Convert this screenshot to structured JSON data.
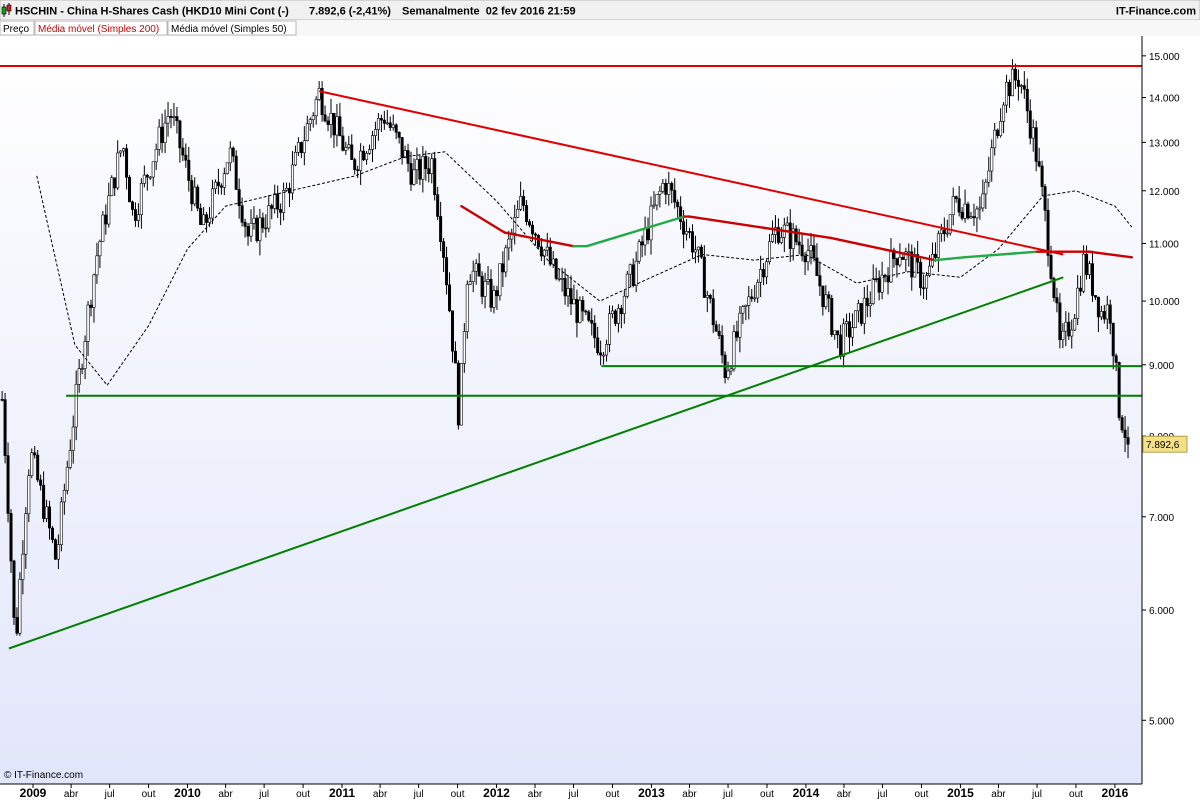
{
  "header": {
    "symbol_line": "HSCHIN - China H-Shares Cash (HKD10 Mini Cont (-)",
    "quote": "7.892,6 (-2,41%)",
    "period": "Semanalmente  02 fev 2016 21:59",
    "brand": "IT-Finance.com"
  },
  "legend": {
    "items": [
      {
        "label": "Preço",
        "color": "#000000"
      },
      {
        "label": "Média móvel (Simples 200)",
        "color": "#cc0000"
      },
      {
        "label": "Média móvel (Simples 50)",
        "color": "#000000"
      }
    ]
  },
  "footer": {
    "copyright": "© IT-Finance.com"
  },
  "colors": {
    "bg_top": "#ffffff",
    "bg_bottom": "#e2e6fa",
    "resistance": "#e00000",
    "support": "#008000",
    "ma200_up": "#22aa44",
    "ma200_down": "#cc0000",
    "ma50": "#000000",
    "candle_up": "#ffffff",
    "candle_down": "#000000",
    "price_label": "#f5e08a"
  },
  "chart_data": {
    "type": "candlestick",
    "y_scale": "log",
    "ylim": [
      4500,
      15500
    ],
    "y_ticks": [
      5000,
      6000,
      7000,
      8000,
      9000,
      10000,
      11000,
      12000,
      13000,
      14000,
      15000
    ],
    "y_tick_labels": [
      "5.000",
      "6.000",
      "7.000",
      "8.000",
      "9.000",
      "10.000",
      "11.000",
      "12.000",
      "13.000",
      "14.000",
      "15.000"
    ],
    "last_price": 7892.6,
    "last_price_label": "7.892,6",
    "x_range": [
      "2008-10-15",
      "2016-03-05"
    ],
    "x_ticks": [
      {
        "date": "2009-01-01",
        "label": "2009",
        "bold": true
      },
      {
        "date": "2009-04-01",
        "label": "abr"
      },
      {
        "date": "2009-07-01",
        "label": "jul"
      },
      {
        "date": "2009-10-01",
        "label": "out"
      },
      {
        "date": "2010-01-01",
        "label": "2010",
        "bold": true
      },
      {
        "date": "2010-04-01",
        "label": "abr"
      },
      {
        "date": "2010-07-01",
        "label": "jul"
      },
      {
        "date": "2010-10-01",
        "label": "out"
      },
      {
        "date": "2011-01-01",
        "label": "2011",
        "bold": true
      },
      {
        "date": "2011-04-01",
        "label": "abr"
      },
      {
        "date": "2011-07-01",
        "label": "jul"
      },
      {
        "date": "2011-10-01",
        "label": "out"
      },
      {
        "date": "2012-01-01",
        "label": "2012",
        "bold": true
      },
      {
        "date": "2012-04-01",
        "label": "abr"
      },
      {
        "date": "2012-07-01",
        "label": "jul"
      },
      {
        "date": "2012-10-01",
        "label": "out"
      },
      {
        "date": "2013-01-01",
        "label": "2013",
        "bold": true
      },
      {
        "date": "2013-04-01",
        "label": "abr"
      },
      {
        "date": "2013-07-01",
        "label": "jul"
      },
      {
        "date": "2013-10-01",
        "label": "out"
      },
      {
        "date": "2014-01-01",
        "label": "2014",
        "bold": true
      },
      {
        "date": "2014-04-01",
        "label": "abr"
      },
      {
        "date": "2014-07-01",
        "label": "jul"
      },
      {
        "date": "2014-10-01",
        "label": "out"
      },
      {
        "date": "2015-01-01",
        "label": "2015",
        "bold": true
      },
      {
        "date": "2015-04-01",
        "label": "abr"
      },
      {
        "date": "2015-07-01",
        "label": "jul"
      },
      {
        "date": "2015-10-01",
        "label": "out"
      },
      {
        "date": "2016-01-01",
        "label": "2016",
        "bold": true
      }
    ],
    "price_path": [
      {
        "date": "2008-10-20",
        "value": 8500
      },
      {
        "date": "2008-11-20",
        "value": 5600
      },
      {
        "date": "2008-12-25",
        "value": 7800
      },
      {
        "date": "2009-02-25",
        "value": 6500
      },
      {
        "date": "2009-04-15",
        "value": 8600
      },
      {
        "date": "2009-06-01",
        "value": 10800
      },
      {
        "date": "2009-08-01",
        "value": 13000
      },
      {
        "date": "2009-08-25",
        "value": 11500
      },
      {
        "date": "2009-11-20",
        "value": 13700
      },
      {
        "date": "2010-02-05",
        "value": 11200
      },
      {
        "date": "2010-04-10",
        "value": 12800
      },
      {
        "date": "2010-05-25",
        "value": 11100
      },
      {
        "date": "2010-08-20",
        "value": 11900
      },
      {
        "date": "2010-11-08",
        "value": 14100
      },
      {
        "date": "2011-01-25",
        "value": 12500
      },
      {
        "date": "2011-04-10",
        "value": 13600
      },
      {
        "date": "2011-06-20",
        "value": 12300
      },
      {
        "date": "2011-08-01",
        "value": 12600
      },
      {
        "date": "2011-09-01",
        "value": 10700
      },
      {
        "date": "2011-10-05",
        "value": 8200
      },
      {
        "date": "2011-10-25",
        "value": 10600
      },
      {
        "date": "2011-12-25",
        "value": 10000
      },
      {
        "date": "2012-03-01",
        "value": 11800
      },
      {
        "date": "2012-05-20",
        "value": 10400
      },
      {
        "date": "2012-08-10",
        "value": 9500
      },
      {
        "date": "2012-09-05",
        "value": 9300
      },
      {
        "date": "2012-11-20",
        "value": 10500
      },
      {
        "date": "2013-02-01",
        "value": 12200
      },
      {
        "date": "2013-04-15",
        "value": 10900
      },
      {
        "date": "2013-06-25",
        "value": 8900
      },
      {
        "date": "2013-08-20",
        "value": 10000
      },
      {
        "date": "2013-10-25",
        "value": 11300
      },
      {
        "date": "2014-01-05",
        "value": 10900
      },
      {
        "date": "2014-03-20",
        "value": 9300
      },
      {
        "date": "2014-05-01",
        "value": 9700
      },
      {
        "date": "2014-08-10",
        "value": 10900
      },
      {
        "date": "2014-10-10",
        "value": 10300
      },
      {
        "date": "2014-12-20",
        "value": 11800
      },
      {
        "date": "2015-02-20",
        "value": 11600
      },
      {
        "date": "2015-04-15",
        "value": 14200
      },
      {
        "date": "2015-05-20",
        "value": 14500
      },
      {
        "date": "2015-06-25",
        "value": 13000
      },
      {
        "date": "2015-08-10",
        "value": 10200
      },
      {
        "date": "2015-08-25",
        "value": 9200
      },
      {
        "date": "2015-09-25",
        "value": 9800
      },
      {
        "date": "2015-10-20",
        "value": 10700
      },
      {
        "date": "2015-12-01",
        "value": 9800
      },
      {
        "date": "2015-12-20",
        "value": 9900
      },
      {
        "date": "2016-01-10",
        "value": 8400
      },
      {
        "date": "2016-02-02",
        "value": 7892.6
      }
    ],
    "ma50_path": [
      {
        "date": "2009-01-10",
        "value": 12300
      },
      {
        "date": "2009-04-10",
        "value": 9300
      },
      {
        "date": "2009-06-25",
        "value": 8700
      },
      {
        "date": "2009-10-01",
        "value": 9600
      },
      {
        "date": "2010-01-01",
        "value": 10900
      },
      {
        "date": "2010-04-01",
        "value": 11700
      },
      {
        "date": "2010-09-01",
        "value": 12000
      },
      {
        "date": "2011-02-01",
        "value": 12300
      },
      {
        "date": "2011-06-01",
        "value": 12700
      },
      {
        "date": "2011-09-01",
        "value": 12800
      },
      {
        "date": "2012-01-01",
        "value": 11800
      },
      {
        "date": "2012-05-01",
        "value": 10700
      },
      {
        "date": "2012-09-01",
        "value": 10000
      },
      {
        "date": "2013-01-01",
        "value": 10400
      },
      {
        "date": "2013-05-01",
        "value": 10800
      },
      {
        "date": "2013-09-01",
        "value": 10700
      },
      {
        "date": "2014-01-01",
        "value": 10800
      },
      {
        "date": "2014-05-01",
        "value": 10300
      },
      {
        "date": "2014-09-01",
        "value": 10500
      },
      {
        "date": "2015-01-01",
        "value": 10400
      },
      {
        "date": "2015-04-01",
        "value": 10900
      },
      {
        "date": "2015-07-15",
        "value": 11900
      },
      {
        "date": "2015-10-01",
        "value": 12000
      },
      {
        "date": "2016-01-01",
        "value": 11700
      },
      {
        "date": "2016-02-10",
        "value": 11300
      }
    ],
    "ma200_path": [
      {
        "date": "2011-10-10",
        "value": 11700,
        "dir": "down"
      },
      {
        "date": "2012-01-20",
        "value": 11200,
        "dir": "down"
      },
      {
        "date": "2012-07-01",
        "value": 10950,
        "dir": "down"
      },
      {
        "date": "2012-08-01",
        "value": 10950,
        "dir": "up"
      },
      {
        "date": "2013-03-20",
        "value": 11500,
        "dir": "up"
      },
      {
        "date": "2013-04-01",
        "value": 11500,
        "dir": "down"
      },
      {
        "date": "2014-03-01",
        "value": 11100,
        "dir": "down"
      },
      {
        "date": "2014-11-01",
        "value": 10700,
        "dir": "down"
      },
      {
        "date": "2015-01-10",
        "value": 10750,
        "dir": "up"
      },
      {
        "date": "2015-07-01",
        "value": 10850,
        "dir": "up"
      },
      {
        "date": "2015-11-01",
        "value": 10850,
        "dir": "down"
      },
      {
        "date": "2016-02-10",
        "value": 10750,
        "dir": "down"
      }
    ],
    "trendlines": [
      {
        "color": "resistance",
        "from": {
          "date": "2008-10-15",
          "value": 14750
        },
        "to": {
          "date": "2016-03-05",
          "value": 14750
        }
      },
      {
        "color": "resistance",
        "from": {
          "date": "2010-11-08",
          "value": 14150
        },
        "to": {
          "date": "2015-09-01",
          "value": 10800
        }
      },
      {
        "color": "support",
        "from": {
          "date": "2008-11-05",
          "value": 5630
        },
        "to": {
          "date": "2015-09-01",
          "value": 10400
        }
      },
      {
        "color": "support",
        "from": {
          "date": "2012-09-05",
          "value": 8980
        },
        "to": {
          "date": "2016-03-05",
          "value": 8980
        }
      },
      {
        "color": "support",
        "from": {
          "date": "2009-03-20",
          "value": 8550
        },
        "to": {
          "date": "2016-03-05",
          "value": 8550
        }
      }
    ]
  }
}
